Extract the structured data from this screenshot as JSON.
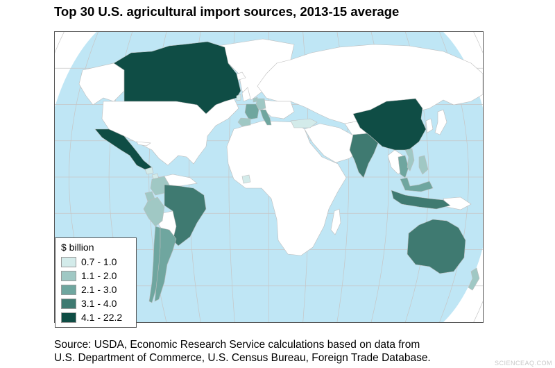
{
  "title": "Top 30 U.S. agricultural import sources, 2013-15 average",
  "legend": {
    "title": "$ billion",
    "classes": [
      {
        "label": "0.7 - 1.0",
        "color": "#d3ebea"
      },
      {
        "label": "1.1 - 2.0",
        "color": "#a0c8c4"
      },
      {
        "label": "2.1 - 3.0",
        "color": "#6fa69f"
      },
      {
        "label": "3.1 - 4.0",
        "color": "#3f7a71"
      },
      {
        "label": "4.1 - 22.2",
        "color": "#0f4d45"
      }
    ]
  },
  "colors": {
    "ocean": "#bfe6f5",
    "land_other": "#dcdcdc",
    "land_not_top": "#ffffff",
    "graticule": "#c6c6c6",
    "border": "#bdbdbd"
  },
  "source": {
    "line1": "Source: USDA, Economic Research Service calculations based on data from",
    "line2": "U.S. Department of Commerce, U.S. Census Bureau, Foreign Trade Database."
  },
  "watermark": "SCIENCEAQ.COM",
  "regions": [
    {
      "name": "Canada",
      "class": 4
    },
    {
      "name": "Mexico",
      "class": 4
    },
    {
      "name": "China",
      "class": 4
    },
    {
      "name": "Brazil",
      "class": 3
    },
    {
      "name": "India",
      "class": 3
    },
    {
      "name": "Indonesia",
      "class": 3
    },
    {
      "name": "Australia",
      "class": 3
    },
    {
      "name": "Argentina",
      "class": 2
    },
    {
      "name": "Chile",
      "class": 2
    },
    {
      "name": "France",
      "class": 2
    },
    {
      "name": "Italy",
      "class": 2
    },
    {
      "name": "Thailand",
      "class": 2
    },
    {
      "name": "Malaysia",
      "class": 2
    },
    {
      "name": "Colombia",
      "class": 1
    },
    {
      "name": "Peru",
      "class": 1
    },
    {
      "name": "Ecuador",
      "class": 1
    },
    {
      "name": "Spain",
      "class": 1
    },
    {
      "name": "Germany",
      "class": 1
    },
    {
      "name": "Netherlands",
      "class": 1
    },
    {
      "name": "New Zealand",
      "class": 1
    },
    {
      "name": "Philippines",
      "class": 1
    },
    {
      "name": "Vietnam",
      "class": 1
    },
    {
      "name": "Guatemala",
      "class": 0
    },
    {
      "name": "Costa Rica",
      "class": 0
    },
    {
      "name": "Ireland",
      "class": 0
    },
    {
      "name": "Turkey",
      "class": 0
    },
    {
      "name": "Ivory Coast",
      "class": 0
    }
  ]
}
